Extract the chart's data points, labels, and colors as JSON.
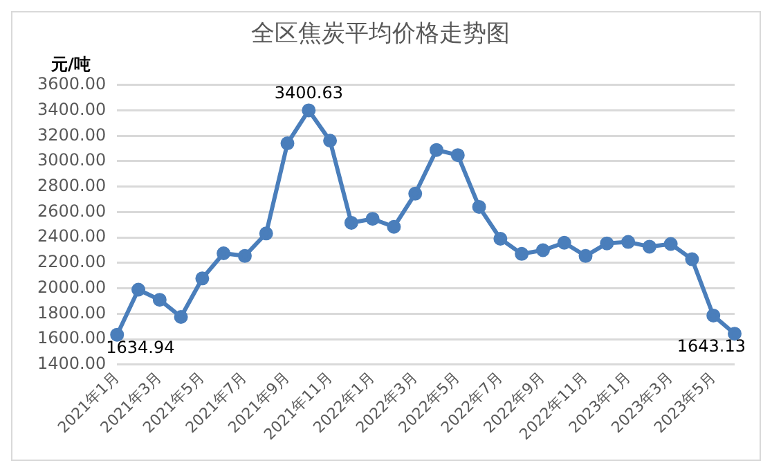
{
  "chart_data": {
    "type": "line",
    "title": "全区焦炭平均价格走势图",
    "ylabel": "元/吨",
    "categories": [
      "2021年1月",
      null,
      "2021年3月",
      null,
      "2021年5月",
      null,
      "2021年7月",
      null,
      "2021年9月",
      null,
      "2021年11月",
      null,
      "2022年1月",
      null,
      "2022年3月",
      null,
      "2022年5月",
      null,
      "2022年7月",
      null,
      "2022年9月",
      null,
      "2022年11月",
      null,
      "2023年1月",
      null,
      "2023年3月",
      null,
      "2023年5月",
      null
    ],
    "series": [
      {
        "color": "#4a7ebb",
        "values": [
          1634.94,
          1990,
          1910,
          1775,
          2078,
          2276,
          2255,
          2432,
          3141,
          3400.63,
          3162,
          2516,
          2547,
          2484,
          2745,
          3089,
          3048,
          2641,
          2390,
          2271,
          2300,
          2359,
          2255,
          2354,
          2365,
          2328,
          2349,
          2229,
          1786,
          1643.13
        ],
        "value_labels": [
          "1634.94",
          null,
          null,
          null,
          null,
          null,
          null,
          null,
          null,
          "3400.63",
          null,
          null,
          null,
          null,
          null,
          null,
          null,
          null,
          null,
          null,
          null,
          null,
          null,
          null,
          null,
          null,
          null,
          null,
          null,
          "1643.13"
        ]
      }
    ],
    "ylim": [
      1400,
      3600
    ],
    "yticks": [
      {
        "value": 1400,
        "label": "1400.00"
      },
      {
        "value": 1600,
        "label": "1600.00"
      },
      {
        "value": 1800,
        "label": "1800.00"
      },
      {
        "value": 2000,
        "label": "2000.00"
      },
      {
        "value": 2200,
        "label": "2200.00"
      },
      {
        "value": 2400,
        "label": "2400.00"
      },
      {
        "value": 2600,
        "label": "2600.00"
      },
      {
        "value": 2800,
        "label": "2800.00"
      },
      {
        "value": 3000,
        "label": "3000.00"
      },
      {
        "value": 3200,
        "label": "3200.00"
      },
      {
        "value": 3400,
        "label": "3400.00"
      },
      {
        "value": 3600,
        "label": "3600.00"
      }
    ],
    "grid": "y",
    "legend": false,
    "marker": "circle",
    "line_style": "solid"
  }
}
